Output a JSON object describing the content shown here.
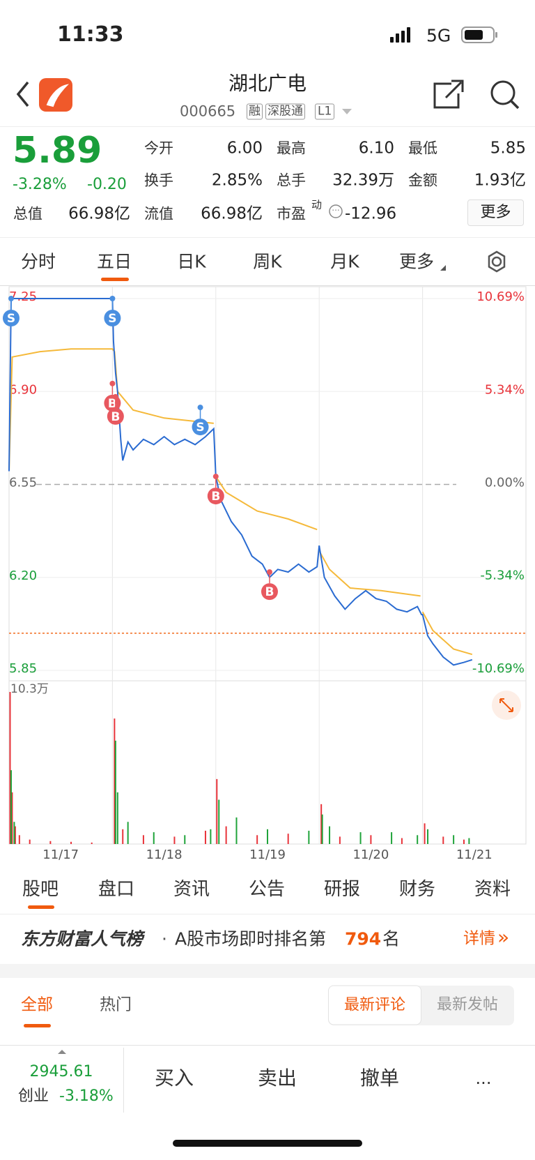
{
  "status_bar": {
    "time": "11:33",
    "network": "5G"
  },
  "header": {
    "title": "湖北广电",
    "code": "000665",
    "tags": [
      "融",
      "深股通",
      "L1"
    ]
  },
  "quote": {
    "price": "5.89",
    "change_pct": "-3.28%",
    "change": "-0.20",
    "stats": [
      {
        "label": "今开",
        "value": "6.00"
      },
      {
        "label": "最高",
        "value": "6.10"
      },
      {
        "label": "最低",
        "value": "5.85"
      },
      {
        "label": "换手",
        "value": "2.85%"
      },
      {
        "label": "总手",
        "value": "32.39万"
      },
      {
        "label": "金额",
        "value": "1.93亿"
      },
      {
        "label": "总值",
        "value": "66.98亿"
      },
      {
        "label": "流值",
        "value": "66.98亿"
      },
      {
        "label": "市盈",
        "note": "动",
        "value": "-12.96"
      }
    ],
    "more": "更多"
  },
  "tabs": [
    "分时",
    "五日",
    "日K",
    "周K",
    "月K",
    "更多"
  ],
  "chart_data": [
    {
      "type": "line",
      "xlim": [
        0,
        5
      ],
      "xticks": [
        {
          "value": 0.5,
          "label": "11/17"
        },
        {
          "value": 1.5,
          "label": "11/18"
        },
        {
          "value": 2.5,
          "label": "11/19"
        },
        {
          "value": 3.5,
          "label": "11/20"
        },
        {
          "value": 4.5,
          "label": "11/21"
        }
      ],
      "xgrid": [
        1,
        2,
        3,
        4
      ],
      "ylim": [
        5.85,
        7.25
      ],
      "yticks": [
        7.25,
        {
          "value": 6.9,
          "label": "6.90"
        },
        6.55,
        {
          "value": 6.2,
          "label": "6.20"
        },
        5.85
      ],
      "y2lim": [
        -10.69,
        10.69
      ],
      "y2ticks": [
        {
          "value": 10.69,
          "label": "10.69%"
        },
        {
          "value": 5.34,
          "label": "5.34%"
        },
        {
          "value": 0,
          "label": "0.00%"
        },
        {
          "value": -5.34,
          "label": "-5.34%"
        },
        {
          "value": -10.69,
          "label": "-10.69%"
        }
      ],
      "prev_close": 6.55,
      "reference_line": {
        "value": 5.99,
        "color": "#f26b1d"
      },
      "series": [
        {
          "color": "#2a6bd1",
          "x": [
            0,
            0.02,
            1.0,
            1.01,
            1.03,
            1.05,
            1.08,
            1.1,
            1.15,
            1.2,
            1.3,
            1.4,
            1.5,
            1.6,
            1.7,
            1.8,
            1.9,
            1.98,
            2.0,
            2.05,
            2.15,
            2.25,
            2.35,
            2.45,
            2.52,
            2.6,
            2.7,
            2.8,
            2.9,
            2.98,
            3.0,
            3.05,
            3.15,
            3.25,
            3.35,
            3.45,
            3.55,
            3.65,
            3.75,
            3.85,
            3.95,
            3.99,
            4.0,
            4.05,
            4.1,
            4.2,
            4.3,
            4.4,
            4.48
          ],
          "values": [
            6.6,
            7.25,
            7.25,
            7.09,
            6.97,
            6.9,
            6.72,
            6.64,
            6.71,
            6.68,
            6.72,
            6.7,
            6.73,
            6.7,
            6.72,
            6.7,
            6.73,
            6.76,
            6.58,
            6.49,
            6.41,
            6.36,
            6.28,
            6.25,
            6.2,
            6.23,
            6.22,
            6.25,
            6.22,
            6.24,
            6.32,
            6.2,
            6.13,
            6.08,
            6.12,
            6.15,
            6.12,
            6.11,
            6.08,
            6.07,
            6.09,
            6.06,
            6.06,
            5.98,
            5.95,
            5.9,
            5.87,
            5.88,
            5.89
          ]
        },
        {
          "color": "#f5b93a",
          "x": [
            0,
            0.03,
            0.3,
            0.6,
            1.0,
            1.02,
            1.05,
            1.2,
            1.5,
            1.98,
            1.99,
            2.0,
            2.1,
            2.4,
            2.7,
            2.98,
            2.99,
            3.0,
            3.1,
            3.3,
            3.6,
            3.98,
            3.99,
            4.0,
            4.1,
            4.3,
            4.48
          ],
          "values": [
            6.6,
            7.03,
            7.05,
            7.06,
            7.06,
            7.05,
            6.9,
            6.83,
            6.8,
            6.78,
            null,
            6.58,
            6.52,
            6.45,
            6.42,
            6.38,
            null,
            6.3,
            6.23,
            6.16,
            6.15,
            6.13,
            null,
            6.07,
            6.0,
            5.93,
            5.91
          ]
        }
      ],
      "markers": [
        {
          "label": "S",
          "x": 0.02,
          "y": 7.25,
          "color": "#4a8fe0"
        },
        {
          "label": "S",
          "x": 1.0,
          "y": 7.25,
          "color": "#4a8fe0"
        },
        {
          "label": "B",
          "x": 1.0,
          "y": 6.93,
          "color": "#e8585f"
        },
        {
          "label": "B",
          "x": 1.03,
          "y": 6.88,
          "color": "#e8585f"
        },
        {
          "label": "S",
          "x": 1.85,
          "y": 6.84,
          "color": "#4a8fe0"
        },
        {
          "label": "B",
          "x": 2.0,
          "y": 6.58,
          "color": "#e8585f"
        },
        {
          "label": "B",
          "x": 2.52,
          "y": 6.22,
          "color": "#e8585f"
        }
      ]
    },
    {
      "type": "bar",
      "xlim": [
        0,
        5
      ],
      "ylim": [
        0,
        10.3
      ],
      "yticks": [
        {
          "value": 10.3,
          "label": "10.3万"
        }
      ],
      "series": [
        {
          "color": "#e8333a",
          "x": [
            0.01,
            0.03,
            0.06,
            0.1,
            0.2,
            0.4,
            0.6,
            0.8,
            1.02,
            1.1,
            1.3,
            1.6,
            1.9,
            2.01,
            2.1,
            2.4,
            2.7,
            3.02,
            3.2,
            3.5,
            3.8,
            4.02,
            4.2,
            4.4
          ],
          "values": [
            10.3,
            3.5,
            1.2,
            0.6,
            0.3,
            0.2,
            0.15,
            0.1,
            8.5,
            1.0,
            0.6,
            0.5,
            0.9,
            4.4,
            1.2,
            0.6,
            0.7,
            2.7,
            0.5,
            0.6,
            0.4,
            1.4,
            0.5,
            0.3
          ]
        },
        {
          "color": "#1fa33a",
          "x": [
            0.02,
            0.05,
            1.03,
            1.05,
            1.15,
            1.4,
            1.7,
            1.95,
            2.03,
            2.2,
            2.5,
            2.9,
            3.03,
            3.1,
            3.4,
            3.7,
            3.95,
            4.05,
            4.3,
            4.45
          ],
          "values": [
            5.0,
            1.5,
            7.0,
            3.5,
            1.5,
            0.8,
            0.6,
            1.0,
            3.0,
            1.8,
            1.0,
            0.9,
            2.0,
            1.2,
            0.8,
            0.8,
            0.6,
            1.0,
            0.6,
            0.4
          ]
        }
      ]
    }
  ],
  "bottom_tabs": [
    "股吧",
    "盘口",
    "资讯",
    "公告",
    "研报",
    "财务",
    "资料"
  ],
  "popularity": {
    "brand": "东方财富人气榜",
    "separator": "·",
    "text_before": "A股市场即时排名第",
    "rank": "794",
    "text_after": "名",
    "link": "详情",
    "link_icon": "»"
  },
  "comments": {
    "filters": [
      "全部",
      "热门"
    ],
    "sort": [
      "最新评论",
      "最新发帖"
    ]
  },
  "toolbar": {
    "index_value": "2945.61",
    "index_name": "创业",
    "index_change": "-3.18%",
    "actions": [
      "买入",
      "卖出",
      "撤单",
      "..."
    ]
  }
}
